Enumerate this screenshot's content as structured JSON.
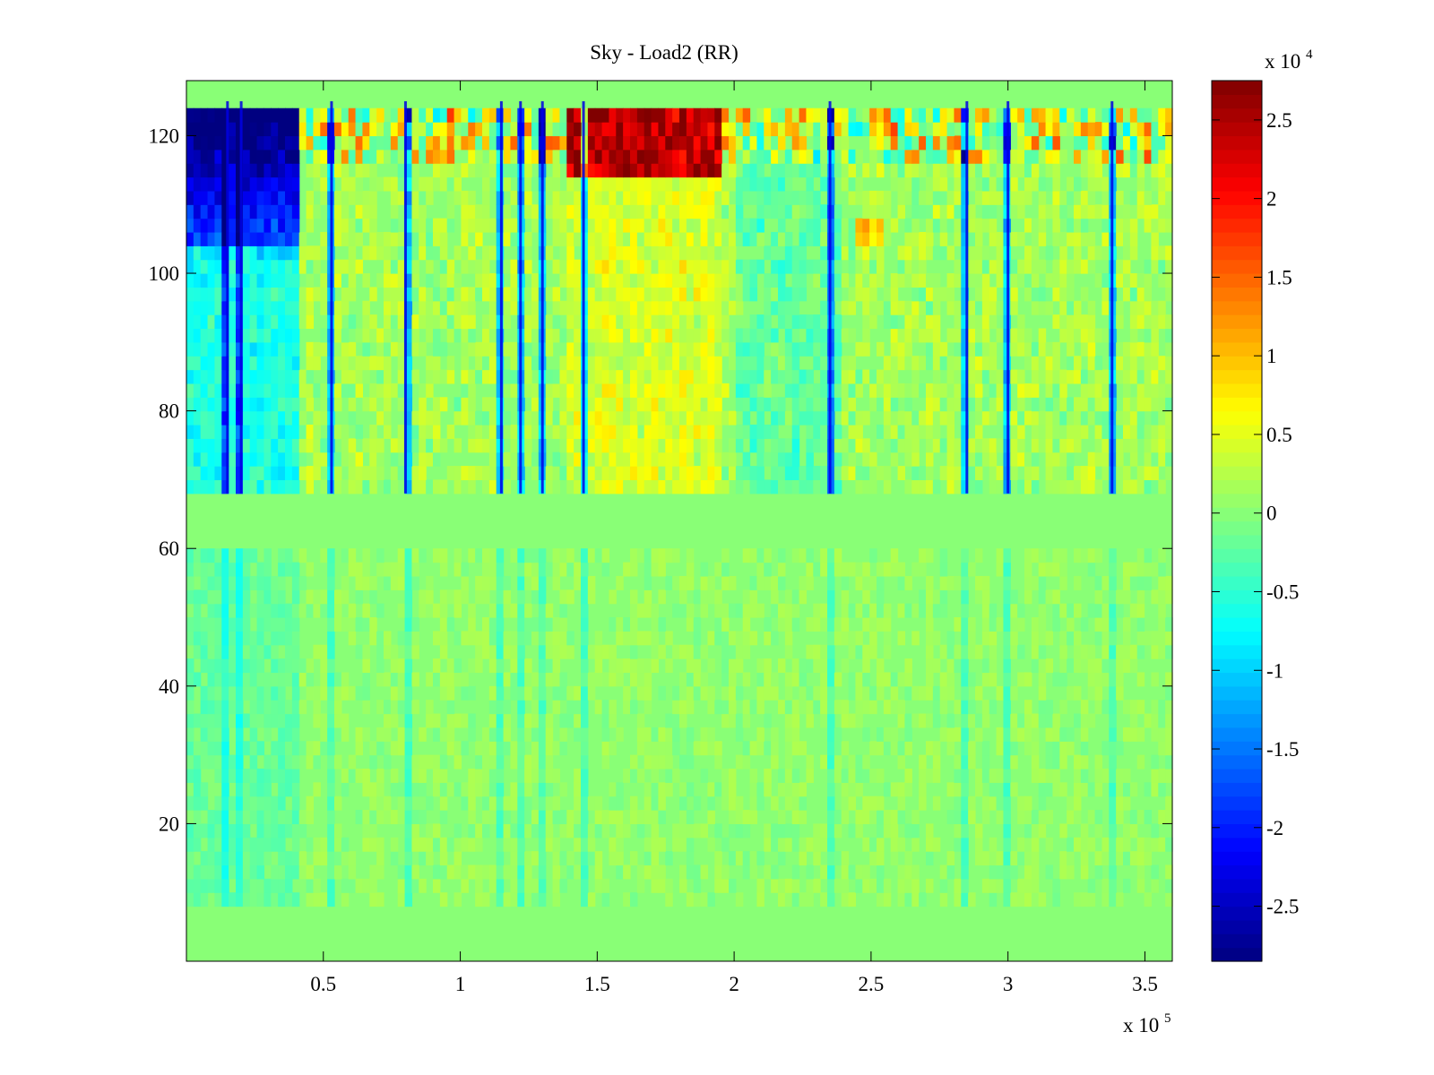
{
  "chart_data": {
    "type": "heatmap",
    "title": "Sky - Load2 (RR)",
    "xlabel": "",
    "ylabel": "",
    "x_exponent_label": "x 10",
    "x_exponent_power": "5",
    "x_scale_note": "x 10^5",
    "xlim": [
      0,
      3.6
    ],
    "ylim": [
      0,
      128
    ],
    "x_ticks": [
      "0.5",
      "1",
      "1.5",
      "2",
      "2.5",
      "3",
      "3.5"
    ],
    "x_tick_values": [
      0.5,
      1,
      1.5,
      2,
      2.5,
      3,
      3.5
    ],
    "y_ticks": [
      "20",
      "40",
      "60",
      "80",
      "100",
      "120"
    ],
    "y_tick_values": [
      20,
      40,
      60,
      80,
      100,
      120
    ],
    "grid": false,
    "colormap": "jet",
    "colorbar": {
      "exponent_label": "x 10",
      "exponent_power": "4",
      "scale_note": "x 10^4",
      "clim": [
        -2.85,
        2.75
      ],
      "ticks": [
        "2.5",
        "2",
        "1.5",
        "1",
        "0.5",
        "0",
        "-0.5",
        "-1",
        "-1.5",
        "-2",
        "-2.5"
      ],
      "tick_values": [
        2.5,
        2,
        1.5,
        1,
        0.5,
        0,
        -0.5,
        -1,
        -1.5,
        -2,
        -2.5
      ]
    },
    "description_of_field": {
      "empty_rows_y": [
        [
          0,
          7
        ],
        [
          61,
          68
        ],
        [
          125,
          128
        ]
      ],
      "active_rows_y": [
        [
          7,
          61
        ],
        [
          68,
          125
        ]
      ],
      "strong_negative_region": {
        "x": [
          0,
          0.4
        ],
        "y": [
          105,
          125
        ]
      },
      "strong_positive_region": {
        "x": [
          1.4,
          1.95
        ],
        "y": [
          115,
          125
        ]
      },
      "dark_vertical_lines_x": [
        0.15,
        0.2,
        0.53,
        0.8,
        1.15,
        1.22,
        1.3,
        1.45,
        2.35,
        2.85,
        3.0,
        3.38
      ]
    }
  }
}
